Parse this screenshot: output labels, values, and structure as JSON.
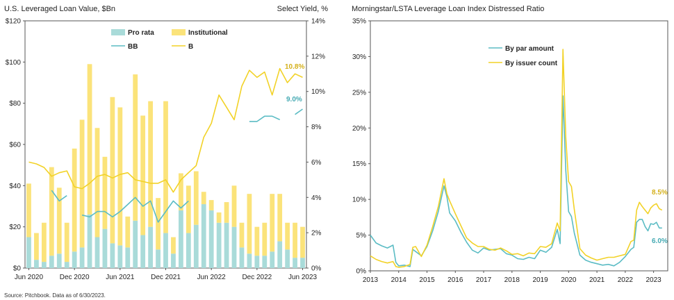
{
  "source_note": "Source: Pitchbook. Data as of 6/30/2023.",
  "chart_data": [
    {
      "type": "bar",
      "title": "U.S. Leveraged Loan Value, $Bn",
      "y2_title": "Select Yield, %",
      "ylim": [
        0,
        120
      ],
      "y_ticks": [
        0,
        20,
        40,
        60,
        80,
        100,
        120
      ],
      "y_tick_labels": [
        "$0",
        "$20",
        "$40",
        "$60",
        "$80",
        "$100",
        "$120"
      ],
      "y2lim": [
        0,
        14
      ],
      "y2_ticks": [
        0,
        2,
        4,
        6,
        8,
        10,
        12,
        14
      ],
      "y2_tick_labels": [
        "0%",
        "2%",
        "4%",
        "6%",
        "8%",
        "10%",
        "12%",
        "14%"
      ],
      "x_tick_labels": [
        "Jun 2020",
        "Dec 2020",
        "Jun 2021",
        "Dec 2021",
        "Jun 2022",
        "Dec 2022",
        "Jun 2023"
      ],
      "x_tick_positions": [
        0,
        6,
        12,
        18,
        24,
        30,
        36
      ],
      "categories": [
        "2020-06",
        "2020-07",
        "2020-08",
        "2020-09",
        "2020-10",
        "2020-11",
        "2020-12",
        "2021-01",
        "2021-02",
        "2021-03",
        "2021-04",
        "2021-05",
        "2021-06",
        "2021-07",
        "2021-08",
        "2021-09",
        "2021-10",
        "2021-11",
        "2021-12",
        "2022-01",
        "2022-02",
        "2022-03",
        "2022-04",
        "2022-05",
        "2022-06",
        "2022-07",
        "2022-08",
        "2022-09",
        "2022-10",
        "2022-11",
        "2022-12",
        "2023-01",
        "2023-02",
        "2023-03",
        "2023-04",
        "2023-05",
        "2023-06"
      ],
      "stacked": true,
      "legend_position": "top-center",
      "series": [
        {
          "name": "Pro rata",
          "kind": "bar",
          "axis": "left",
          "color": "#a9dbd9",
          "values": [
            15,
            4,
            3,
            6,
            7,
            3,
            8,
            10,
            26,
            15,
            19,
            12,
            11,
            10,
            23,
            16,
            20,
            9,
            17,
            7,
            28,
            17,
            21,
            31,
            28,
            22,
            22,
            20,
            10,
            7,
            6,
            6,
            8,
            13,
            9,
            5,
            5
          ]
        },
        {
          "name": "Institutional",
          "kind": "bar",
          "axis": "left",
          "color": "#fbe37a",
          "values": [
            26,
            13,
            19,
            43,
            32,
            19,
            50,
            62,
            73,
            53,
            35,
            71,
            67,
            15,
            71,
            58,
            61,
            25,
            64,
            8,
            18,
            23,
            26,
            6,
            5,
            5,
            10,
            20,
            12,
            29,
            14,
            16,
            28,
            23,
            13,
            17,
            15
          ]
        },
        {
          "name": "BB",
          "kind": "line",
          "axis": "right",
          "color": "#5bbcc4",
          "values": [
            null,
            null,
            null,
            4.4,
            3.8,
            4.1,
            null,
            3.0,
            2.9,
            3.2,
            3.2,
            2.9,
            3.2,
            3.6,
            4.0,
            3.5,
            3.8,
            2.6,
            3.2,
            3.8,
            3.4,
            3.8,
            null,
            null,
            null,
            null,
            null,
            null,
            null,
            8.3,
            8.3,
            8.6,
            8.6,
            8.4,
            null,
            8.7,
            9.0
          ]
        },
        {
          "name": "B",
          "kind": "line",
          "axis": "right",
          "color": "#f2d227",
          "values": [
            6.0,
            5.9,
            5.7,
            5.2,
            5.4,
            5.5,
            4.6,
            4.5,
            4.8,
            5.2,
            5.3,
            5.1,
            5.3,
            5.4,
            5.0,
            4.9,
            4.8,
            4.8,
            5.0,
            4.3,
            5.0,
            5.4,
            5.8,
            7.4,
            8.2,
            9.8,
            9.1,
            8.4,
            10.3,
            11.2,
            10.8,
            11.1,
            9.8,
            11.3,
            10.5,
            11.0,
            10.8
          ]
        }
      ],
      "annotations": [
        {
          "text": "10.8%",
          "series": "B",
          "color": "#d4b01a"
        },
        {
          "text": "9.0%",
          "series": "BB",
          "color": "#45aab3"
        }
      ]
    },
    {
      "type": "line",
      "title": "Morningstar/LSTA Leverage Loan Index Distressed Ratio",
      "ylim": [
        0,
        35
      ],
      "y_ticks": [
        0,
        5,
        10,
        15,
        20,
        25,
        30,
        35
      ],
      "y_tick_labels": [
        "0%",
        "5%",
        "10%",
        "15%",
        "20%",
        "25%",
        "30%",
        "35%"
      ],
      "xlim": [
        2013,
        2023.5
      ],
      "x_ticks": [
        2013,
        2014,
        2015,
        2016,
        2017,
        2018,
        2019,
        2020,
        2021,
        2022,
        2023
      ],
      "x_tick_labels": [
        "2013",
        "2014",
        "2015",
        "2016",
        "2017",
        "2018",
        "2019",
        "2020",
        "2021",
        "2022",
        "2023"
      ],
      "legend_position": "top-center",
      "series": [
        {
          "name": "By par amount",
          "color": "#5bbcc4",
          "x": [
            2013.0,
            2013.2,
            2013.4,
            2013.6,
            2013.8,
            2013.9,
            2014.0,
            2014.2,
            2014.4,
            2014.5,
            2014.6,
            2014.8,
            2015.0,
            2015.2,
            2015.4,
            2015.6,
            2015.7,
            2015.8,
            2016.0,
            2016.2,
            2016.4,
            2016.6,
            2016.8,
            2017.0,
            2017.2,
            2017.4,
            2017.6,
            2017.8,
            2018.0,
            2018.2,
            2018.4,
            2018.6,
            2018.8,
            2019.0,
            2019.2,
            2019.4,
            2019.6,
            2019.7,
            2019.8,
            2019.9,
            2020.0,
            2020.1,
            2020.2,
            2020.4,
            2020.6,
            2020.8,
            2021.0,
            2021.2,
            2021.4,
            2021.6,
            2021.8,
            2022.0,
            2022.2,
            2022.3,
            2022.4,
            2022.5,
            2022.6,
            2022.7,
            2022.8,
            2022.9,
            2023.0,
            2023.1,
            2023.2,
            2023.3
          ],
          "values": [
            5.0,
            3.9,
            3.5,
            3.2,
            3.6,
            1.2,
            0.7,
            0.8,
            0.6,
            3.0,
            2.7,
            2.1,
            3.4,
            5.6,
            8.3,
            11.9,
            10.4,
            8.1,
            7.0,
            5.4,
            4.0,
            2.9,
            2.5,
            3.2,
            2.9,
            3.0,
            3.1,
            2.4,
            2.2,
            1.7,
            1.6,
            1.9,
            1.7,
            2.9,
            2.6,
            3.3,
            5.8,
            3.8,
            24.5,
            14.0,
            8.3,
            7.6,
            5.3,
            2.2,
            1.5,
            1.2,
            1.0,
            0.8,
            0.9,
            0.7,
            1.2,
            2.0,
            3.0,
            3.3,
            6.8,
            7.2,
            7.2,
            6.2,
            5.6,
            6.6,
            6.5,
            6.8,
            6.0,
            6.0
          ]
        },
        {
          "name": "By issuer count",
          "color": "#f2d227",
          "x": [
            2013.0,
            2013.2,
            2013.4,
            2013.6,
            2013.8,
            2013.9,
            2014.0,
            2014.2,
            2014.4,
            2014.5,
            2014.6,
            2014.8,
            2015.0,
            2015.2,
            2015.4,
            2015.6,
            2015.7,
            2015.8,
            2016.0,
            2016.2,
            2016.4,
            2016.6,
            2016.8,
            2017.0,
            2017.2,
            2017.4,
            2017.6,
            2017.8,
            2018.0,
            2018.2,
            2018.4,
            2018.6,
            2018.8,
            2019.0,
            2019.2,
            2019.4,
            2019.6,
            2019.7,
            2019.8,
            2019.9,
            2020.0,
            2020.1,
            2020.2,
            2020.4,
            2020.6,
            2020.8,
            2021.0,
            2021.2,
            2021.4,
            2021.6,
            2021.8,
            2022.0,
            2022.2,
            2022.3,
            2022.4,
            2022.5,
            2022.6,
            2022.7,
            2022.8,
            2022.9,
            2023.0,
            2023.1,
            2023.2,
            2023.3
          ],
          "values": [
            2.1,
            1.6,
            1.3,
            1.1,
            1.3,
            0.6,
            0.5,
            0.6,
            0.9,
            3.3,
            3.4,
            2.0,
            3.6,
            6.2,
            9.0,
            12.9,
            10.8,
            9.8,
            8.0,
            6.3,
            4.6,
            3.9,
            3.4,
            3.4,
            3.0,
            2.9,
            3.2,
            2.8,
            2.3,
            2.4,
            2.1,
            2.5,
            2.4,
            3.4,
            3.3,
            3.8,
            6.7,
            5.6,
            31.0,
            18.6,
            12.5,
            11.8,
            8.6,
            3.1,
            2.2,
            1.8,
            1.5,
            1.7,
            1.9,
            1.9,
            2.1,
            2.3,
            4.1,
            4.3,
            8.5,
            9.6,
            9.0,
            8.5,
            8.0,
            8.8,
            9.2,
            9.4,
            8.7,
            8.5
          ]
        }
      ],
      "annotations": [
        {
          "text": "8.5%",
          "series": "By issuer count",
          "color": "#d4b01a"
        },
        {
          "text": "6.0%",
          "series": "By par amount",
          "color": "#45aab3"
        }
      ]
    }
  ]
}
